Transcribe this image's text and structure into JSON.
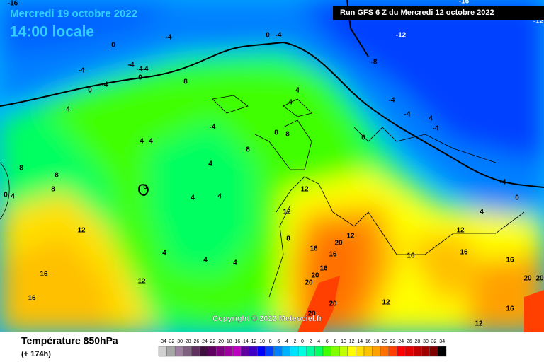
{
  "header": {
    "date": "Mercredi 19 octobre 2022",
    "time": "14:00 locale",
    "run": "Run GFS 6 Z du Mercredi 12 octobre 2022"
  },
  "copyright": "Copyright © 2022 Meteociel.fr",
  "footer": {
    "title": "Température 850hPa",
    "lead": "(+ 174h)"
  },
  "scale": {
    "values": [
      -34,
      -32,
      -30,
      -28,
      -26,
      -24,
      -22,
      -20,
      -18,
      -16,
      -14,
      -12,
      -10,
      -8,
      -6,
      -4,
      -2,
      0,
      2,
      4,
      6,
      8,
      10,
      12,
      14,
      16,
      18,
      20,
      22,
      24,
      26,
      28,
      30,
      32,
      34
    ],
    "colors": [
      "#d0d0d0",
      "#a8a8a8",
      "#a080a0",
      "#806080",
      "#603060",
      "#401040",
      "#600060",
      "#800080",
      "#a000a0",
      "#c000c0",
      "#6000a0",
      "#4000c0",
      "#0000ff",
      "#0040ff",
      "#0080ff",
      "#00b0ff",
      "#00e0ff",
      "#00ffe0",
      "#00ffa0",
      "#00ff60",
      "#40ff00",
      "#80ff00",
      "#c0ff00",
      "#ffff00",
      "#ffe000",
      "#ffc000",
      "#ffa000",
      "#ff7000",
      "#ff4000",
      "#ff0000",
      "#e00000",
      "#c00000",
      "#a00000",
      "#800000",
      "#000000"
    ]
  },
  "map_labels": [
    "-16",
    "-4",
    "0",
    "-4",
    "-4",
    "-4",
    "-4",
    "0",
    "-4",
    "0",
    "8",
    "-4",
    "4",
    "4",
    "4",
    "0",
    "8",
    "8",
    "8",
    "0",
    "4",
    "12",
    "16",
    "16",
    "12",
    "4",
    "4",
    "4",
    "4",
    "4",
    "4",
    "8",
    "12",
    "16",
    "20",
    "12",
    "16",
    "20",
    "20",
    "16",
    "20",
    "20",
    "12",
    "16",
    "12",
    "16",
    "16",
    "20",
    "20",
    "16",
    "12",
    "-8",
    "-12",
    "-16",
    "-12",
    "0",
    "-4",
    "4",
    "4",
    "8",
    "8",
    "8",
    "12",
    "-4",
    "-4",
    "-4",
    "0",
    "4",
    "-4",
    "0",
    "4"
  ]
}
